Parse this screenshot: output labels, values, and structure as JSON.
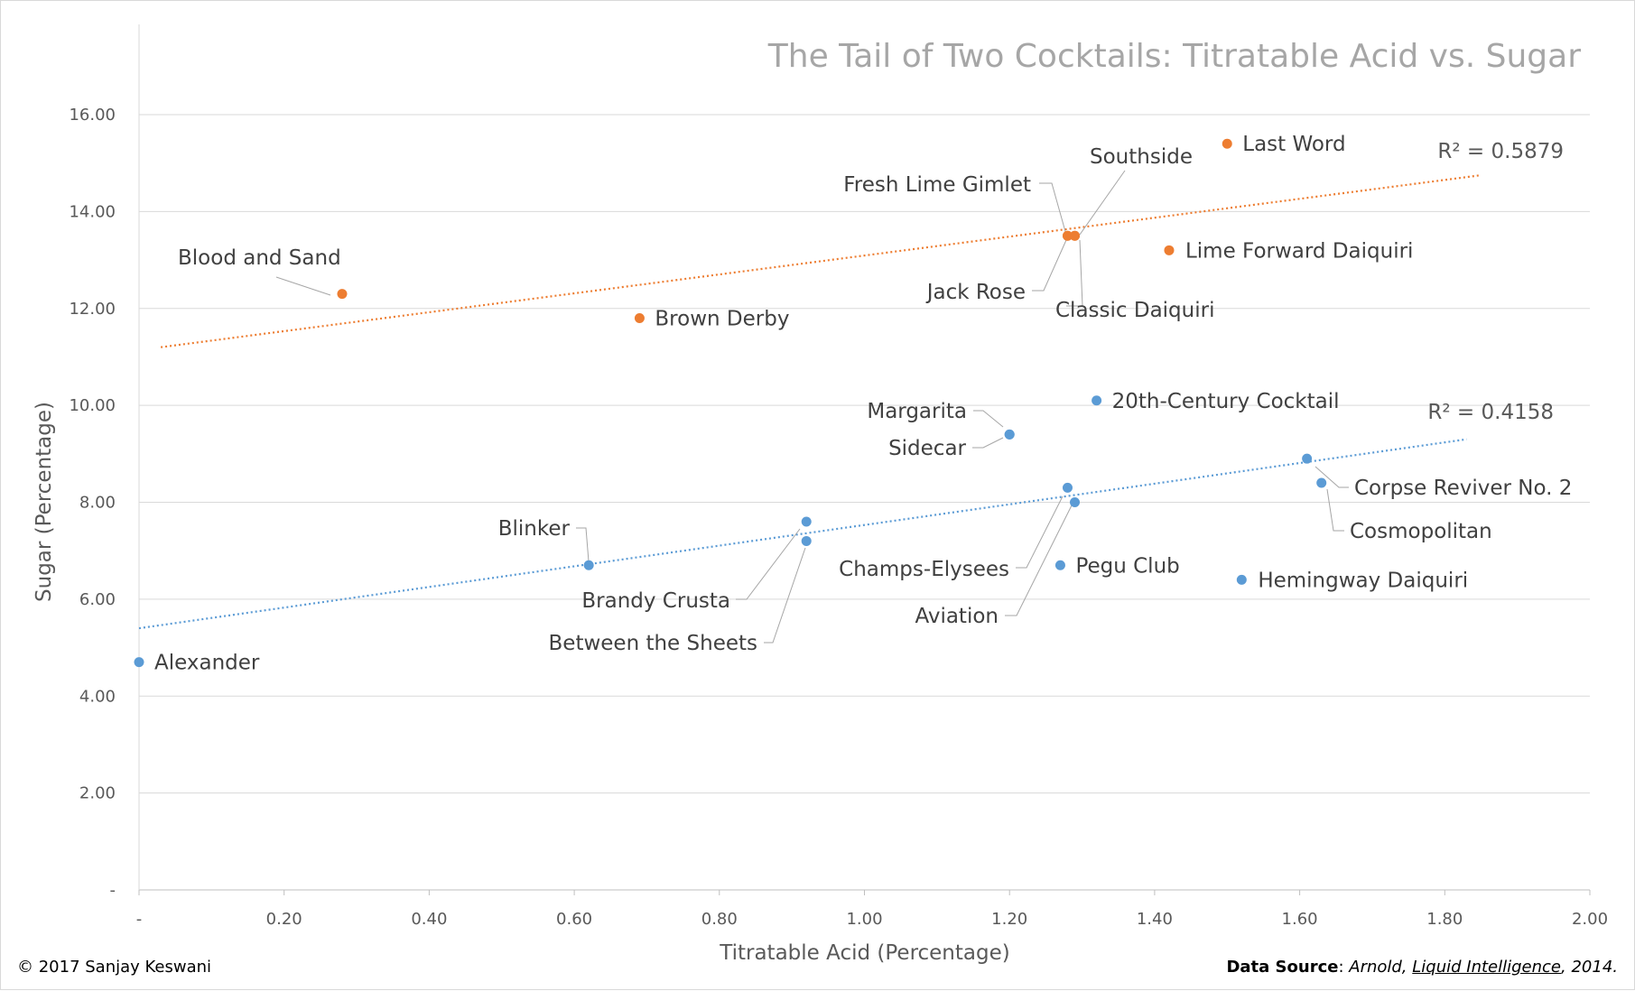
{
  "chart_data": {
    "type": "scatter",
    "title": "The Tail of Two Cocktails: Titratable Acid vs. Sugar",
    "xlabel": "Titratable Acid (Percentage)",
    "ylabel": "Sugar (Percentage)",
    "xlim": [
      0,
      2.0
    ],
    "ylim": [
      0,
      16.0
    ],
    "x_ticks": [
      "-",
      "0.20",
      "0.40",
      "0.60",
      "0.80",
      "1.00",
      "1.20",
      "1.40",
      "1.60",
      "1.80",
      "2.00"
    ],
    "y_ticks": [
      "-",
      "2.00",
      "4.00",
      "6.00",
      "8.00",
      "10.00",
      "12.00",
      "14.00",
      "16.00"
    ],
    "grid": "horizontal",
    "series": [
      {
        "color": "#ed7d31",
        "trendline": {
          "type": "linear",
          "r2_label": "R² = 0.5879",
          "x_range": [
            0.03,
            1.85
          ],
          "y_range": [
            11.2,
            14.75
          ]
        },
        "points": [
          {
            "name": "Blood and Sand",
            "x": 0.28,
            "y": 12.3
          },
          {
            "name": "Brown Derby",
            "x": 0.69,
            "y": 11.8
          },
          {
            "name": "Fresh Lime Gimlet",
            "x": 1.28,
            "y": 13.5
          },
          {
            "name": "Jack Rose",
            "x": 1.28,
            "y": 13.5
          },
          {
            "name": "Southside",
            "x": 1.29,
            "y": 13.5
          },
          {
            "name": "Classic Daiquiri",
            "x": 1.29,
            "y": 13.5
          },
          {
            "name": "Lime Forward Daiquiri",
            "x": 1.42,
            "y": 13.2
          },
          {
            "name": "Last Word",
            "x": 1.5,
            "y": 15.4
          }
        ]
      },
      {
        "color": "#5b9bd5",
        "trendline": {
          "type": "linear",
          "r2_label": "R² = 0.4158",
          "x_range": [
            0.0,
            1.83
          ],
          "y_range": [
            5.4,
            9.3
          ]
        },
        "points": [
          {
            "name": "Alexander",
            "x": 0.0,
            "y": 4.7
          },
          {
            "name": "Blinker",
            "x": 0.62,
            "y": 6.7
          },
          {
            "name": "Brandy Crusta",
            "x": 0.92,
            "y": 7.6
          },
          {
            "name": "Between the Sheets",
            "x": 0.92,
            "y": 7.2
          },
          {
            "name": "Margarita",
            "x": 1.2,
            "y": 9.4
          },
          {
            "name": "Sidecar",
            "x": 1.2,
            "y": 9.4
          },
          {
            "name": "Champs-Elysees",
            "x": 1.28,
            "y": 8.3
          },
          {
            "name": "Aviation",
            "x": 1.29,
            "y": 8.0
          },
          {
            "name": "Pegu Club",
            "x": 1.27,
            "y": 6.7
          },
          {
            "name": "20th-Century Cocktail",
            "x": 1.32,
            "y": 10.1
          },
          {
            "name": "Hemingway Daiquiri",
            "x": 1.52,
            "y": 6.4
          },
          {
            "name": "Corpse Reviver No. 2",
            "x": 1.61,
            "y": 8.9
          },
          {
            "name": "Cosmopolitan",
            "x": 1.63,
            "y": 8.4
          }
        ]
      }
    ]
  },
  "footer": {
    "copyright": "© 2017 Sanjay Keswani",
    "source_label": "Data Source",
    "source_author": "Arnold, ",
    "source_title": "Liquid Intelligence",
    "source_year": ", 2014."
  }
}
